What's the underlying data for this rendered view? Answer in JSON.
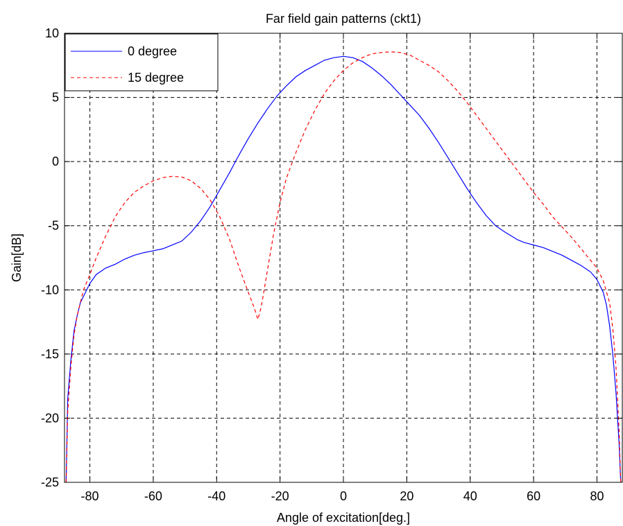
{
  "chart_data": {
    "type": "line",
    "title": "Far field gain patterns (ckt1)",
    "xlabel": "Angle of excitation[deg.]",
    "ylabel": "Gain[dB]",
    "xlim": [
      -88,
      88
    ],
    "ylim": [
      -25,
      10
    ],
    "xticks": [
      -80,
      -60,
      -40,
      -20,
      0,
      20,
      40,
      60,
      80
    ],
    "yticks": [
      10,
      5,
      0,
      -5,
      -10,
      -15,
      -20,
      -25
    ],
    "grid": true,
    "legend_position": "top-left",
    "series": [
      {
        "name": "0 degree",
        "color": "#0000ff",
        "style": "solid",
        "x": [
          -87.5,
          -87,
          -86,
          -85,
          -84,
          -83,
          -82,
          -80,
          -78,
          -75,
          -72,
          -69,
          -66,
          -63,
          -60,
          -57,
          -55,
          -53,
          -51,
          -48,
          -45,
          -42,
          -39,
          -36,
          -33,
          -30,
          -27,
          -24,
          -21,
          -18,
          -15,
          -12,
          -9,
          -6,
          -3,
          0,
          3,
          6,
          9,
          12,
          15,
          18,
          21,
          24,
          27,
          30,
          33,
          36,
          39,
          42,
          45,
          48,
          51,
          53,
          55,
          57,
          60,
          63,
          66,
          69,
          72,
          75,
          78,
          80,
          82,
          83,
          84,
          85,
          86,
          87,
          87.5
        ],
        "y": [
          -25,
          -18.5,
          -15.5,
          -13.2,
          -12,
          -11,
          -10.5,
          -9.5,
          -8.8,
          -8.3,
          -8.0,
          -7.6,
          -7.3,
          -7.1,
          -6.95,
          -6.8,
          -6.6,
          -6.4,
          -6.2,
          -5.5,
          -4.6,
          -3.5,
          -2.2,
          -0.9,
          0.5,
          1.8,
          3.0,
          4.1,
          5.1,
          5.9,
          6.6,
          7.1,
          7.5,
          7.9,
          8.1,
          8.2,
          8.1,
          7.8,
          7.3,
          6.7,
          6.0,
          5.2,
          4.4,
          3.6,
          2.6,
          1.5,
          0.3,
          -0.9,
          -2.1,
          -3.2,
          -4.2,
          -5.0,
          -5.5,
          -5.8,
          -6.1,
          -6.3,
          -6.5,
          -6.7,
          -7.0,
          -7.3,
          -7.7,
          -8.1,
          -8.6,
          -9.2,
          -10.2,
          -11.2,
          -12.8,
          -15,
          -18,
          -22,
          -25
        ]
      },
      {
        "name": "15 degree",
        "color": "#ff0000",
        "style": "dashed",
        "x": [
          -87.5,
          -87,
          -86,
          -85,
          -84,
          -83,
          -82,
          -80,
          -78,
          -75,
          -72,
          -69,
          -66,
          -63,
          -60,
          -57,
          -54,
          -51,
          -48,
          -45,
          -42,
          -39,
          -36,
          -33,
          -30,
          -28,
          -27,
          -26,
          -25,
          -24,
          -22,
          -20,
          -18,
          -15,
          -12,
          -9,
          -6,
          -3,
          0,
          3,
          6,
          9,
          12,
          15,
          18,
          21,
          24,
          27,
          30,
          33,
          36,
          39,
          42,
          45,
          48,
          51,
          54,
          57,
          60,
          63,
          66,
          69,
          72,
          75,
          78,
          80,
          82,
          84,
          85,
          86,
          87,
          87.5
        ],
        "y": [
          -25,
          -19.5,
          -16,
          -13.5,
          -12,
          -11,
          -10,
          -8.8,
          -7.5,
          -5.8,
          -4.3,
          -3.2,
          -2.4,
          -1.9,
          -1.5,
          -1.25,
          -1.15,
          -1.2,
          -1.5,
          -2.1,
          -3.0,
          -4.3,
          -6.0,
          -8.2,
          -10.2,
          -11.5,
          -12.3,
          -11.4,
          -10,
          -8.5,
          -5.6,
          -3.2,
          -1.3,
          0.7,
          2.5,
          4.0,
          5.3,
          6.3,
          7.1,
          7.7,
          8.1,
          8.4,
          8.5,
          8.55,
          8.5,
          8.3,
          7.9,
          7.5,
          7.0,
          6.3,
          5.5,
          4.6,
          3.6,
          2.6,
          1.6,
          0.6,
          -0.4,
          -1.4,
          -2.4,
          -3.3,
          -4.3,
          -5.1,
          -5.9,
          -6.8,
          -7.7,
          -8.3,
          -9.3,
          -11,
          -13,
          -16,
          -21,
          -25
        ]
      }
    ]
  }
}
